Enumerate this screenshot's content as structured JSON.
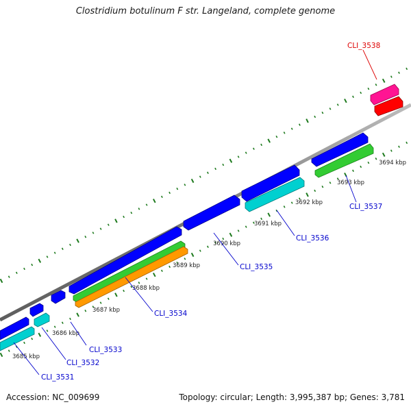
{
  "title": "Clostridium botulinum F str. Langeland, complete genome",
  "footer": {
    "accession": "Accession: NC_009699",
    "stats": "Topology: circular; Length: 3,995,387 bp; Genes: 3,781"
  },
  "colors": {
    "backbone": "#8a8a8a",
    "tick": "#1e7a1e",
    "cds": "#0000ff",
    "cyan": "#00d0d0",
    "green": "#33cc33",
    "orange": "#ff9900",
    "magenta": "#ff1493",
    "red": "#ff0000",
    "label_blue": "#0000cc",
    "label_red": "#dd0000"
  },
  "kbp_ticks": [
    "3685 kbp",
    "3686 kbp",
    "3687 kbp",
    "3688 kbp",
    "3689 kbp",
    "3690 kbp",
    "3691 kbp",
    "3692 kbp",
    "3693 kbp",
    "3694 kbp"
  ],
  "gene_labels": [
    "CLI_3531",
    "CLI_3532",
    "CLI_3533",
    "CLI_3534",
    "CLI_3535",
    "CLI_3536",
    "CLI_3537",
    "CLI_3538"
  ]
}
